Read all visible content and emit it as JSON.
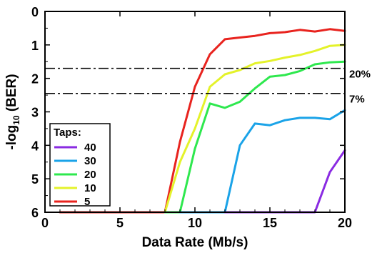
{
  "chart_data": {
    "type": "line",
    "xlabel": "Data Rate (Mb/s)",
    "ylabel_main": "-log",
    "ylabel_sub": "10",
    "ylabel_tail": " (BER)",
    "xlim": [
      0,
      20
    ],
    "ylim": [
      0,
      6
    ],
    "y_inverted": true,
    "x_ticks": [
      0,
      5,
      10,
      15,
      20
    ],
    "y_ticks": [
      0,
      1,
      2,
      3,
      4,
      5,
      6
    ],
    "x_tick_labels": [
      "0",
      "5",
      "10",
      "15",
      "20"
    ],
    "y_tick_labels": [
      "0",
      "1",
      "2",
      "3",
      "4",
      "5",
      "6"
    ],
    "grid": false,
    "legend": {
      "title": "Taps:",
      "placement": "bottom-left",
      "entries": [
        "40",
        "30",
        "20",
        "10",
        "5"
      ]
    },
    "thresholds": [
      {
        "label": "20%",
        "y": 1.7
      },
      {
        "label": "7%",
        "y": 2.45
      }
    ],
    "series": [
      {
        "name": "40",
        "color": "#8a2be2",
        "x": [
          12,
          13,
          14,
          15,
          16,
          17,
          18,
          19,
          20
        ],
        "y": [
          6,
          6,
          6,
          6,
          6,
          6,
          6,
          4.8,
          4.15
        ]
      },
      {
        "name": "30",
        "color": "#1aa3e8",
        "x": [
          9,
          10,
          11,
          12,
          13,
          14,
          15,
          16,
          17,
          18,
          19,
          20
        ],
        "y": [
          6,
          6,
          6,
          6,
          4.0,
          3.35,
          3.4,
          3.25,
          3.18,
          3.18,
          3.22,
          2.95
        ]
      },
      {
        "name": "20",
        "color": "#2ee84e",
        "x": [
          8,
          9,
          10,
          11,
          12,
          13,
          14,
          15,
          16,
          17,
          18,
          19,
          20
        ],
        "y": [
          6,
          6,
          4.1,
          2.75,
          2.88,
          2.7,
          2.3,
          1.95,
          1.9,
          1.78,
          1.58,
          1.52,
          1.5
        ]
      },
      {
        "name": "10",
        "color": "#e4f22a",
        "x": [
          8,
          9,
          10,
          11,
          12,
          13,
          14,
          15,
          16,
          17,
          18,
          19,
          20
        ],
        "y": [
          6,
          4.5,
          3.5,
          2.25,
          1.88,
          1.75,
          1.55,
          1.48,
          1.38,
          1.3,
          1.18,
          1.03,
          1.0
        ]
      },
      {
        "name": "5",
        "color": "#e8231e",
        "x": [
          1,
          8,
          9,
          10,
          11,
          12,
          13,
          14,
          15,
          16,
          17,
          18,
          19,
          20
        ],
        "y": [
          6,
          6,
          3.9,
          2.25,
          1.28,
          0.83,
          0.78,
          0.73,
          0.65,
          0.62,
          0.55,
          0.6,
          0.53,
          0.58
        ]
      }
    ]
  }
}
